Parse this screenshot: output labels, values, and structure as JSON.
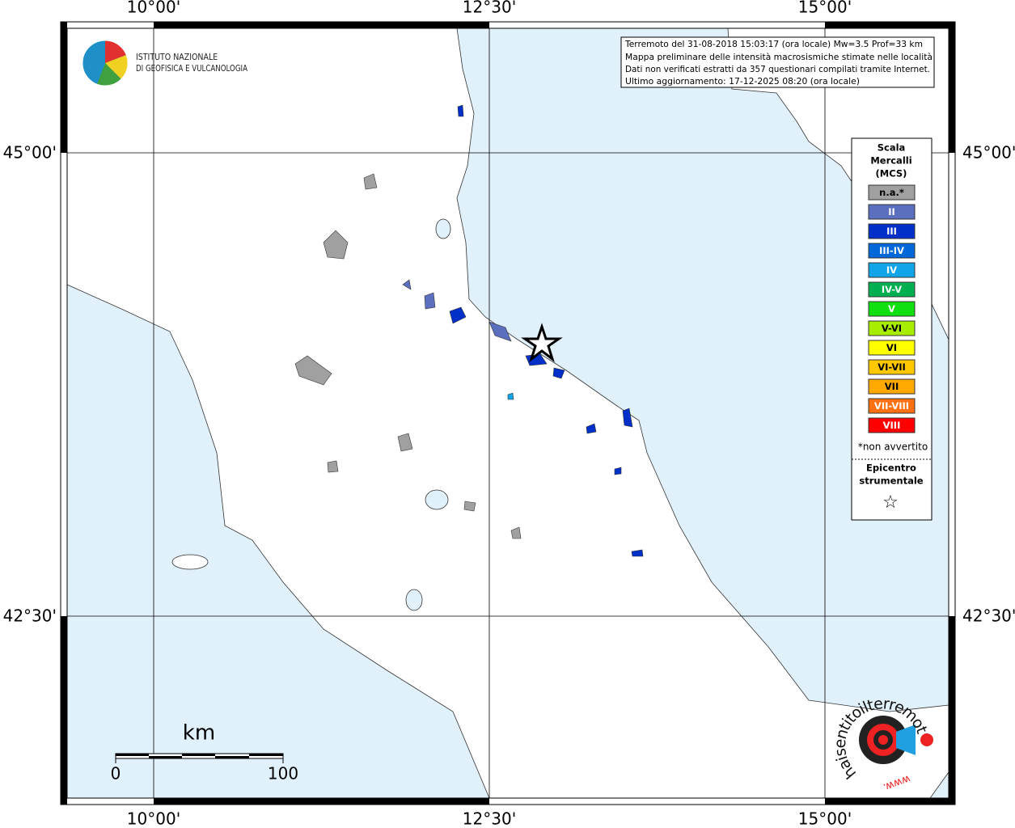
{
  "map": {
    "lon_labels": [
      "10°00'",
      "12°30'",
      "15°00'"
    ],
    "lat_labels": [
      "45°00'",
      "42°30'"
    ]
  },
  "logo": {
    "lines": [
      "ISTITUTO NAZIONALE",
      "DI GEOFISICA E VULCANOLOGIA"
    ]
  },
  "info_box": {
    "lines": [
      "Terremoto del 31-08-2018 15:03:17 (ora locale) Mw=3.5 Prof=33 km",
      "Mappa preliminare delle intensità macrosismiche stimate nelle località",
      "Dati non verificati estratti da 357 questionari compilati tramite Internet.",
      "Ultimo aggiornamento: 17-12-2025 08:20 (ora locale)"
    ]
  },
  "legend": {
    "title": [
      "Scala",
      "Mercalli",
      "(MCS)"
    ],
    "items": [
      {
        "label": "n.a.*",
        "color": "#a0a0a0"
      },
      {
        "label": "II",
        "color": "#5b6fbf"
      },
      {
        "label": "III",
        "color": "#0030c8"
      },
      {
        "label": "III-IV",
        "color": "#0068d8"
      },
      {
        "label": "IV",
        "color": "#10a4e8"
      },
      {
        "label": "IV-V",
        "color": "#00b050"
      },
      {
        "label": "V",
        "color": "#10e010"
      },
      {
        "label": "V-VI",
        "color": "#a8ec00"
      },
      {
        "label": "VI",
        "color": "#ffff00"
      },
      {
        "label": "VI-VII",
        "color": "#ffc800"
      },
      {
        "label": "VII",
        "color": "#ffa800"
      },
      {
        "label": "VII-VIII",
        "color": "#ff7010"
      },
      {
        "label": "VIII",
        "color": "#ff0000"
      }
    ],
    "note": "*non avvertito",
    "epicenter": [
      "Epicentro",
      "strumentale"
    ],
    "star": "☆"
  },
  "scale_bar": {
    "unit": "km",
    "labels": [
      "0",
      "100"
    ]
  },
  "badge": {
    "ring": "haisentitoilterremoto.it",
    "www": "www."
  }
}
